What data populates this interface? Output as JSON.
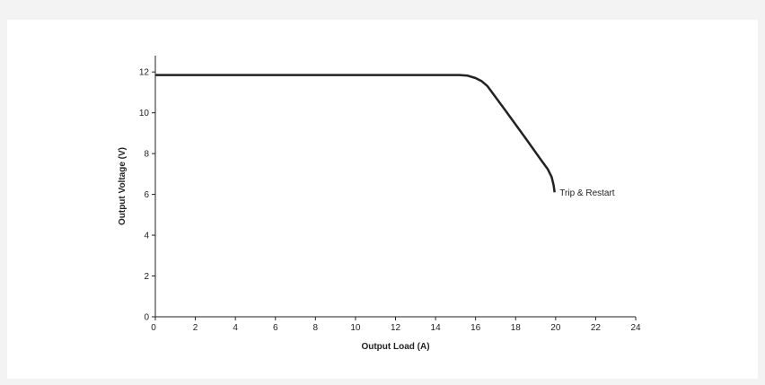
{
  "chart_data": {
    "type": "line",
    "title": "",
    "xlabel": "Output Load (A)",
    "ylabel": "Output Voltage (V)",
    "xlim": [
      0,
      24
    ],
    "ylim": [
      0,
      12.8
    ],
    "xticks": [
      0,
      2,
      4,
      6,
      8,
      10,
      12,
      14,
      16,
      18,
      20,
      22,
      24
    ],
    "yticks": [
      0,
      2,
      4,
      6,
      8,
      10,
      12
    ],
    "grid": false,
    "series": [
      {
        "name": "",
        "color": "#222222",
        "x": [
          0,
          15.2,
          15.6,
          16.0,
          16.3,
          16.6,
          17.5,
          18.5,
          19.3,
          19.6,
          19.8,
          19.9,
          19.95
        ],
        "y": [
          11.85,
          11.85,
          11.82,
          11.7,
          11.55,
          11.3,
          10.1,
          8.75,
          7.65,
          7.25,
          6.85,
          6.45,
          6.1
        ]
      }
    ],
    "annotations": [
      {
        "text": "Trip & Restart",
        "x": 20.2,
        "y": 6.1
      }
    ]
  }
}
